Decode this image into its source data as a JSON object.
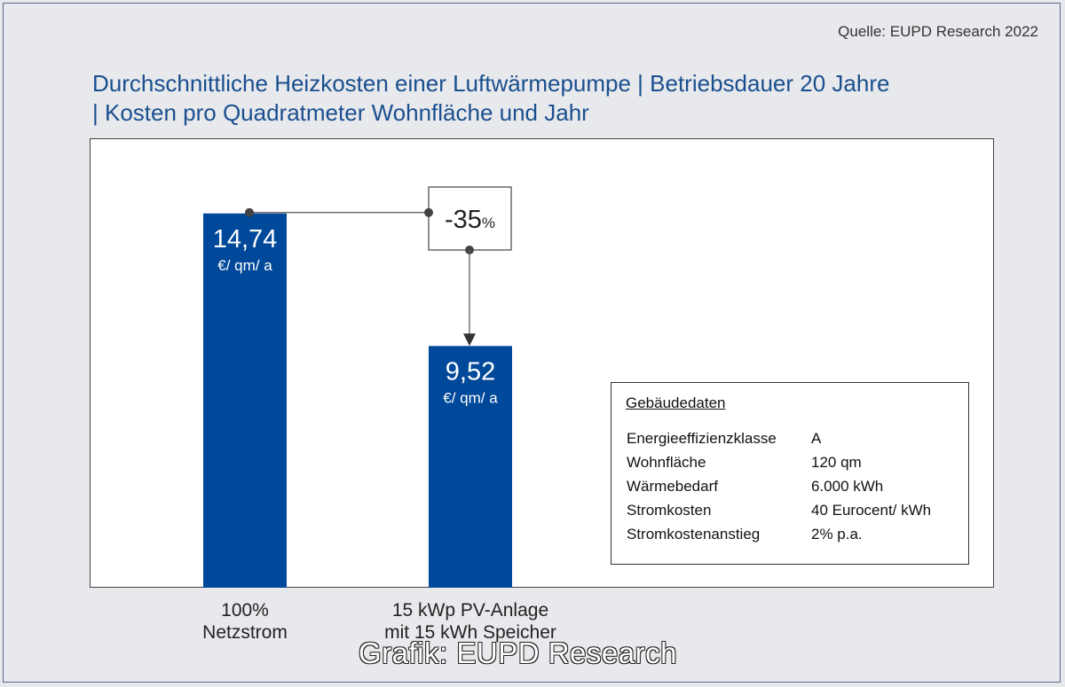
{
  "source": "Quelle: EUPD Research 2022",
  "title_line1": "Durchschnittliche Heizkosten einer Luftwärmepumpe | Betriebsdauer 20 Jahre",
  "title_line2": "| Kosten pro Quadratmeter Wohnfläche und Jahr",
  "watermark": "Grafik: EUPD Research",
  "colors": {
    "bar": "#00489a",
    "title": "#1a4f8f"
  },
  "chart_data": {
    "type": "bar",
    "title": "Durchschnittliche Heizkosten einer Luftwärmepumpe | Betriebsdauer 20 Jahre | Kosten pro Quadratmeter Wohnfläche und Jahr",
    "categories": [
      "100% Netzstrom",
      "15 kWp PV-Anlage mit 15 kWh Speicher"
    ],
    "values": [
      14.74,
      9.52
    ],
    "value_labels": [
      "14,74",
      "9,52"
    ],
    "unit": "€/ qm/ a",
    "change_label": "-35",
    "change_unit": "%",
    "ylim": [
      0,
      17.7
    ],
    "grid": false
  },
  "categories_display": [
    {
      "line1": "100%",
      "line2": "Netzstrom"
    },
    {
      "line1": "15 kWp PV-Anlage",
      "line2": "mit 15 kWh Speicher"
    }
  ],
  "info_box": {
    "title": "Gebäudedaten",
    "rows": [
      {
        "key": "Energieeffizienzklasse",
        "value": "A"
      },
      {
        "key": "Wohnfläche",
        "value": "120 qm"
      },
      {
        "key": "Wärmebedarf",
        "value": "6.000 kWh"
      },
      {
        "key": "Stromkosten",
        "value": "40 Eurocent/ kWh"
      },
      {
        "key": "Stromkostenanstieg",
        "value": "2% p.a."
      }
    ]
  }
}
